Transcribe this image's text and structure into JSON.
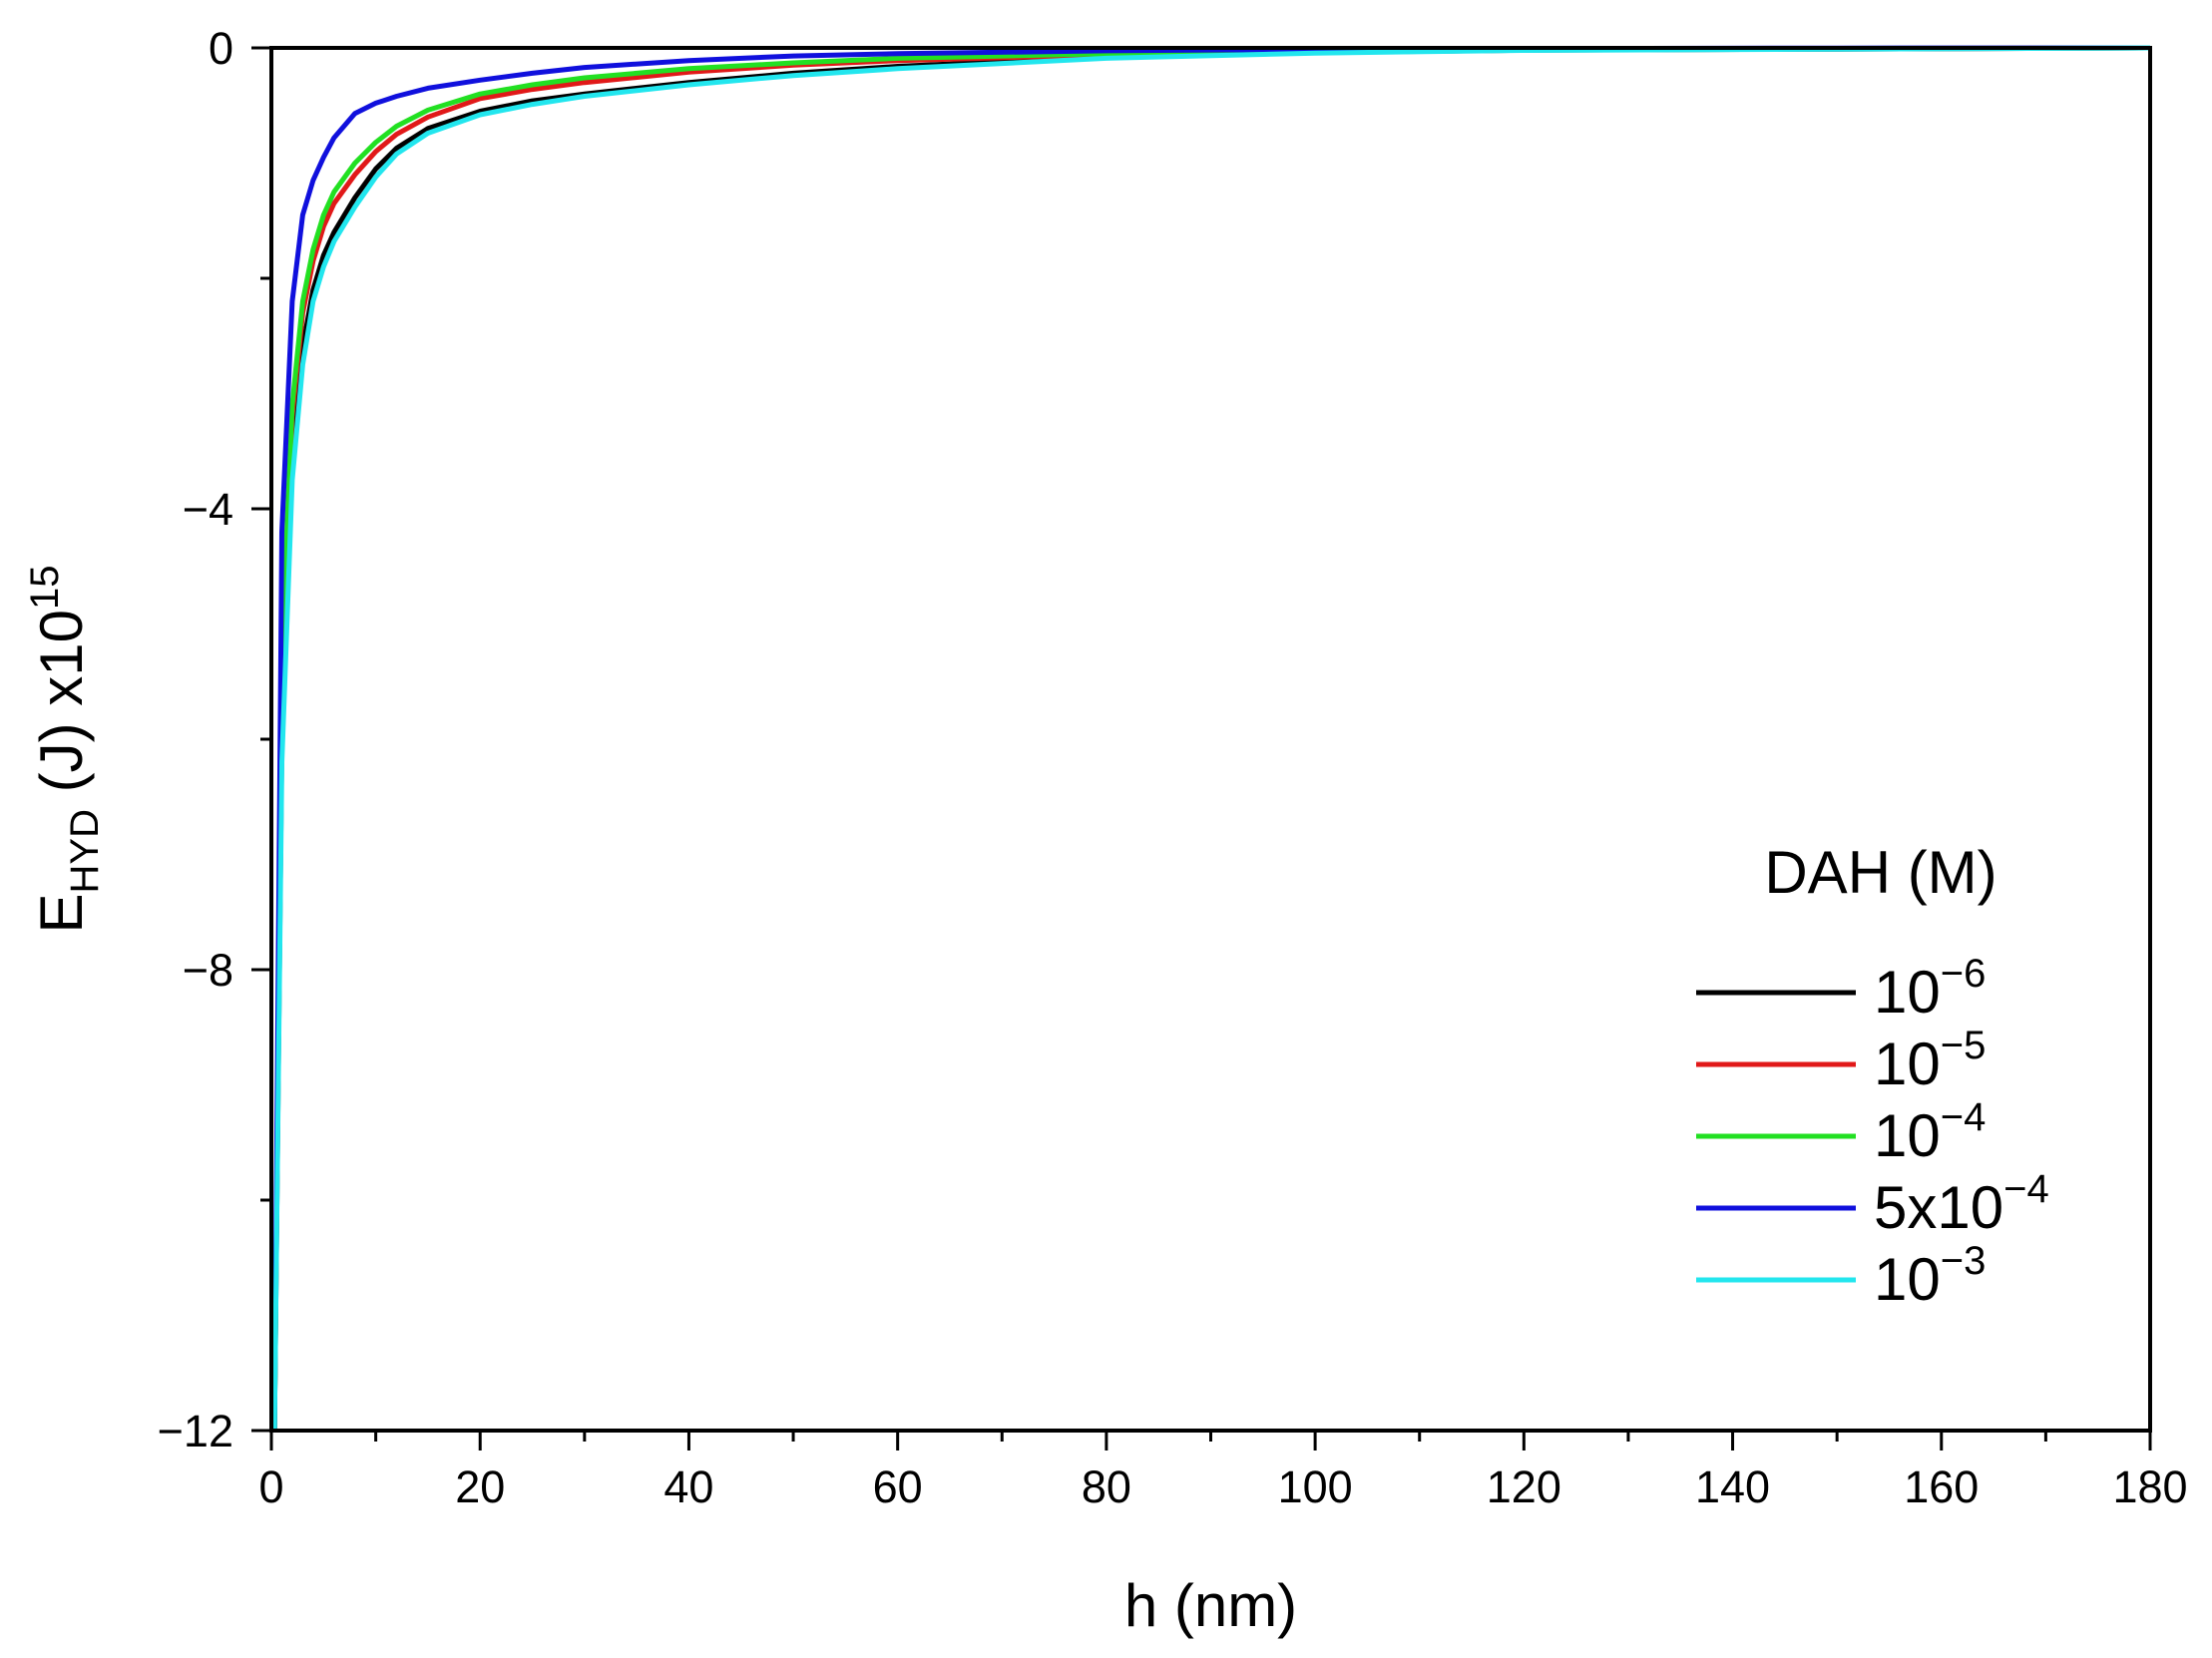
{
  "chart_data": {
    "type": "line",
    "xlabel": "h (nm)",
    "ylabel": {
      "main": "E",
      "sub": "HYD",
      "rest": " (J) x10",
      "sup": "15"
    },
    "xlim": [
      0,
      180
    ],
    "ylim": [
      -12,
      0
    ],
    "x_ticks": [
      "0",
      "20",
      "40",
      "60",
      "80",
      "100",
      "120",
      "140",
      "160",
      "180"
    ],
    "y_ticks": [
      {
        "value": 0,
        "label": "0"
      },
      {
        "value": -4,
        "label": "−4"
      },
      {
        "value": -8,
        "label": "−8"
      },
      {
        "value": -12,
        "label": "−12"
      }
    ],
    "legend_title": "DAH (M)",
    "legend_position": "right",
    "series": [
      {
        "name": "10−6",
        "label_base": "10",
        "label_exp": "−6",
        "color": "#000000",
        "x": [
          0.3,
          1,
          2,
          3,
          4,
          5,
          6,
          8,
          10,
          12,
          15,
          20,
          25,
          30,
          40,
          50,
          60,
          80,
          100,
          120,
          150,
          180
        ],
        "y": [
          -12,
          -6.0,
          -3.6,
          -2.6,
          -2.1,
          -1.8,
          -1.6,
          -1.3,
          -1.05,
          -0.87,
          -0.7,
          -0.55,
          -0.46,
          -0.4,
          -0.3,
          -0.22,
          -0.16,
          -0.08,
          -0.04,
          -0.02,
          -0.01,
          0
        ]
      },
      {
        "name": "10−5",
        "label_base": "10",
        "label_exp": "−5",
        "color": "#e11919",
        "x": [
          0.3,
          1,
          2,
          3,
          4,
          5,
          6,
          8,
          10,
          12,
          15,
          20,
          25,
          30,
          40,
          50,
          60,
          80,
          100,
          120,
          150,
          180
        ],
        "y": [
          -12,
          -5.4,
          -3.2,
          -2.3,
          -1.85,
          -1.55,
          -1.35,
          -1.1,
          -0.9,
          -0.75,
          -0.6,
          -0.44,
          -0.36,
          -0.3,
          -0.21,
          -0.15,
          -0.11,
          -0.06,
          -0.03,
          -0.015,
          -0.005,
          0
        ]
      },
      {
        "name": "10−4",
        "label_base": "10",
        "label_exp": "−4",
        "color": "#22e022",
        "x": [
          0.3,
          1,
          2,
          3,
          4,
          5,
          6,
          8,
          10,
          12,
          15,
          20,
          25,
          30,
          40,
          50,
          60,
          80,
          100,
          120,
          150,
          180
        ],
        "y": [
          -12,
          -5.2,
          -3.1,
          -2.2,
          -1.75,
          -1.45,
          -1.25,
          -1.0,
          -0.82,
          -0.68,
          -0.54,
          -0.4,
          -0.32,
          -0.26,
          -0.18,
          -0.13,
          -0.09,
          -0.05,
          -0.025,
          -0.012,
          -0.004,
          0
        ]
      },
      {
        "name": "5x10−4",
        "label_base": "5x10",
        "label_exp": "−4",
        "color": "#1010dd",
        "x": [
          0.3,
          1,
          2,
          3,
          4,
          5,
          6,
          8,
          10,
          12,
          15,
          20,
          25,
          30,
          40,
          50,
          60,
          80,
          100,
          120,
          150,
          180
        ],
        "y": [
          -12,
          -4.2,
          -2.2,
          -1.45,
          -1.15,
          -0.95,
          -0.78,
          -0.57,
          -0.48,
          -0.42,
          -0.35,
          -0.28,
          -0.22,
          -0.17,
          -0.11,
          -0.07,
          -0.05,
          -0.025,
          -0.012,
          -0.006,
          -0.002,
          0
        ]
      },
      {
        "name": "10−3",
        "label_base": "10",
        "label_exp": "−3",
        "color": "#22e6ee",
        "x": [
          0.3,
          1,
          2,
          3,
          4,
          5,
          6,
          8,
          10,
          12,
          15,
          20,
          25,
          30,
          40,
          50,
          60,
          80,
          100,
          120,
          150,
          180
        ],
        "y": [
          -12,
          -6.2,
          -3.75,
          -2.75,
          -2.2,
          -1.9,
          -1.68,
          -1.38,
          -1.12,
          -0.92,
          -0.74,
          -0.58,
          -0.49,
          -0.42,
          -0.32,
          -0.24,
          -0.18,
          -0.09,
          -0.045,
          -0.022,
          -0.01,
          0
        ]
      }
    ]
  }
}
